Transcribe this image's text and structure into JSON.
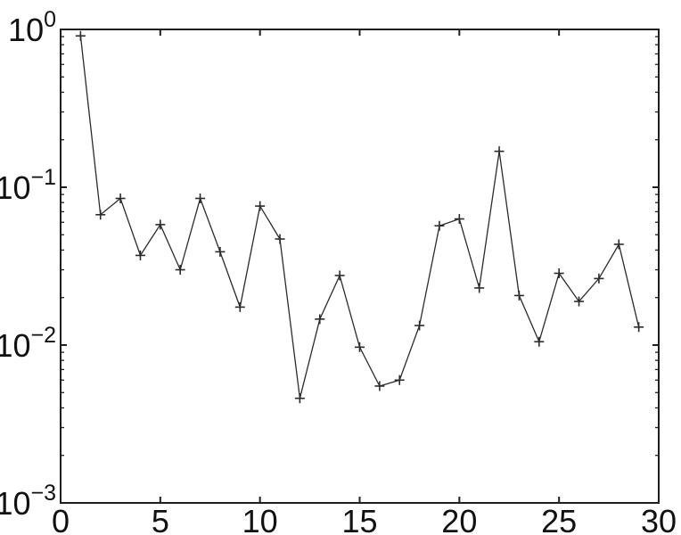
{
  "figure": {
    "background": "#ffffff",
    "axis_color": "#1f1f1f",
    "tick_label_color": "#111111"
  },
  "chart_data": {
    "type": "line",
    "title": "",
    "xlabel": "",
    "ylabel": "",
    "yscale": "log",
    "marker": "plus",
    "line_color": "#2b2b2b",
    "marker_color": "#2b2b2b",
    "grid": false,
    "legend": null,
    "xlim": [
      0,
      30
    ],
    "ylim": [
      0.001,
      1
    ],
    "xticks": [
      0,
      5,
      10,
      15,
      20,
      25,
      30
    ],
    "xtick_labels": [
      "0",
      "5",
      "10",
      "15",
      "20",
      "25",
      "30"
    ],
    "ytick_exponents": [
      0,
      -1,
      -2,
      -3
    ],
    "ytick_base": "10",
    "y_minor_ticks": true,
    "x": [
      1,
      2,
      3,
      4,
      5,
      6,
      7,
      8,
      9,
      10,
      11,
      12,
      13,
      14,
      15,
      16,
      17,
      18,
      19,
      20,
      21,
      22,
      23,
      24,
      25,
      26,
      27,
      28,
      29
    ],
    "y": [
      0.91,
      0.067,
      0.085,
      0.037,
      0.058,
      0.03,
      0.085,
      0.039,
      0.0174,
      0.076,
      0.047,
      0.0046,
      0.0146,
      0.0276,
      0.0097,
      0.0055,
      0.006,
      0.0133,
      0.057,
      0.063,
      0.023,
      0.169,
      0.0206,
      0.0105,
      0.0285,
      0.0189,
      0.0264,
      0.0435,
      0.013
    ]
  }
}
